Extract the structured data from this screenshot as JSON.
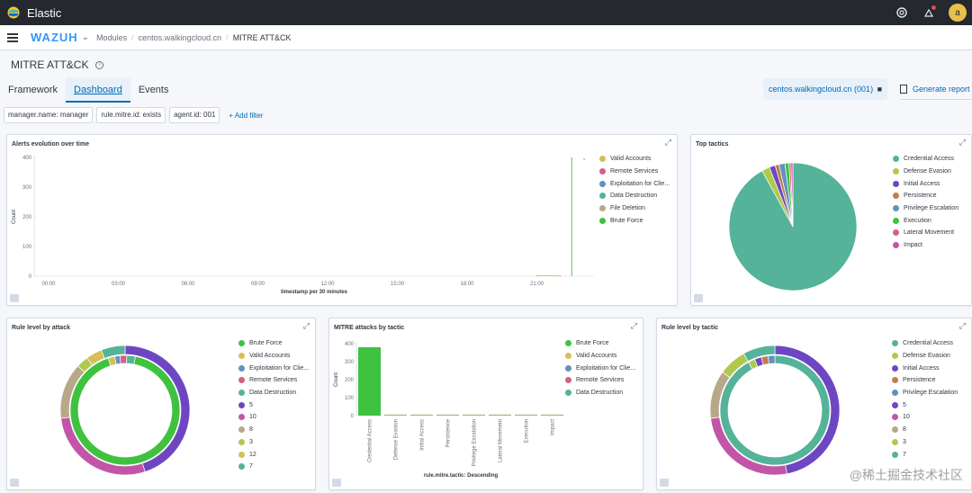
{
  "topbar": {
    "app_title": "Elastic",
    "avatar_letter": "a"
  },
  "navbar": {
    "brand": "WAZUH",
    "breadcrumbs": [
      "Modules",
      "centos.walkingcloud.cn",
      "MITRE ATT&CK"
    ]
  },
  "page": {
    "title": "MITRE ATT&CK"
  },
  "tabs": [
    "Framework",
    "Dashboard",
    "Events"
  ],
  "agent_pill": "centos.walkingcloud.cn (001)",
  "report_button": "Generate report",
  "filters": [
    "manager.name: manager",
    "rule.mitre.id: exists",
    "agent.id: 001"
  ],
  "add_filter": "+ Add filter",
  "panels": {
    "alerts": {
      "title": "Alerts evolution over time",
      "legend": [
        {
          "name": "Valid Accounts",
          "color": "#d6bf57"
        },
        {
          "name": "Remote Services",
          "color": "#d36086"
        },
        {
          "name": "Exploitation for Clie...",
          "color": "#6092c0"
        },
        {
          "name": "Data Destruction",
          "color": "#54b399"
        },
        {
          "name": "File Deletion",
          "color": "#b9a888"
        },
        {
          "name": "Brute Force",
          "color": "#3fc23f"
        }
      ]
    },
    "top_tactics": {
      "title": "Top tactics",
      "legend": [
        {
          "name": "Credential Access",
          "color": "#54b399"
        },
        {
          "name": "Defense Evasion",
          "color": "#b0c94d"
        },
        {
          "name": "Initial Access",
          "color": "#6e46c2"
        },
        {
          "name": "Persistence",
          "color": "#c47c4e"
        },
        {
          "name": "Privilege Escalation",
          "color": "#6092c0"
        },
        {
          "name": "Execution",
          "color": "#3fc23f"
        },
        {
          "name": "Lateral Movement",
          "color": "#d36086"
        },
        {
          "name": "Impact",
          "color": "#c255a8"
        }
      ]
    },
    "rule_attack": {
      "title": "Rule level by attack",
      "legend": [
        {
          "name": "Brute Force",
          "color": "#3fc23f"
        },
        {
          "name": "Valid Accounts",
          "color": "#d6bf57"
        },
        {
          "name": "Exploitation for Clie...",
          "color": "#6092c0"
        },
        {
          "name": "Remote Services",
          "color": "#d36086"
        },
        {
          "name": "Data Destruction",
          "color": "#54b399"
        },
        {
          "name": "5",
          "color": "#6e46c2"
        },
        {
          "name": "10",
          "color": "#c255a8"
        },
        {
          "name": "8",
          "color": "#b9a888"
        },
        {
          "name": "3",
          "color": "#b0c94d"
        },
        {
          "name": "12",
          "color": "#d6bf57"
        },
        {
          "name": "7",
          "color": "#54b399"
        }
      ]
    },
    "mitre_tactic": {
      "title": "MITRE attacks by tactic",
      "legend": [
        {
          "name": "Brute Force",
          "color": "#3fc23f"
        },
        {
          "name": "Valid Accounts",
          "color": "#d6bf57"
        },
        {
          "name": "Exploitation for Clie...",
          "color": "#6092c0"
        },
        {
          "name": "Remote Services",
          "color": "#d36086"
        },
        {
          "name": "Data Destruction",
          "color": "#54b399"
        }
      ]
    },
    "rule_tactic": {
      "title": "Rule level by tactic",
      "legend": [
        {
          "name": "Credential Access",
          "color": "#54b399"
        },
        {
          "name": "Defense Evasion",
          "color": "#b0c94d"
        },
        {
          "name": "Initial Access",
          "color": "#6e46c2"
        },
        {
          "name": "Persistence",
          "color": "#c47c4e"
        },
        {
          "name": "Privilege Escalation",
          "color": "#6092c0"
        },
        {
          "name": "5",
          "color": "#6e46c2"
        },
        {
          "name": "10",
          "color": "#c255a8"
        },
        {
          "name": "8",
          "color": "#b9a888"
        },
        {
          "name": "3",
          "color": "#b0c94d"
        },
        {
          "name": "7",
          "color": "#54b399"
        }
      ]
    }
  },
  "watermark": "@稀土掘金技术社区",
  "chart_data": [
    {
      "type": "line",
      "title": "Alerts evolution over time",
      "xlabel": "timestamp per 30 minutes",
      "ylabel": "Count",
      "x_ticks": [
        "00:00",
        "03:00",
        "06:00",
        "09:00",
        "12:00",
        "15:00",
        "18:00",
        "21:00"
      ],
      "y_ticks": [
        0,
        100,
        200,
        300,
        400
      ],
      "ylim": [
        0,
        400
      ],
      "series": [
        {
          "name": "Valid Accounts",
          "points": [
            [
              "21:00",
              2
            ],
            [
              "22:00",
              1
            ]
          ]
        },
        {
          "name": "Brute Force",
          "points": [
            [
              "22:30",
              400
            ]
          ]
        }
      ]
    },
    {
      "type": "pie",
      "title": "Top tactics",
      "categories": [
        "Credential Access",
        "Defense Evasion",
        "Initial Access",
        "Persistence",
        "Privilege Escalation",
        "Execution",
        "Lateral Movement",
        "Impact"
      ],
      "values": [
        92,
        2,
        1.5,
        1,
        1.5,
        1,
        0.5,
        0.5
      ]
    },
    {
      "type": "pie",
      "title": "Rule level by attack",
      "inner": {
        "categories": [
          "Brute Force",
          "Valid Accounts",
          "Exploitation for Clie...",
          "Remote Services",
          "Data Destruction"
        ],
        "values": [
          92,
          2,
          1.5,
          2,
          2.5
        ]
      },
      "outer": {
        "categories": [
          "5",
          "10",
          "8",
          "3",
          "12",
          "7"
        ],
        "values": [
          45,
          28,
          14,
          3,
          4,
          6
        ]
      }
    },
    {
      "type": "bar",
      "title": "MITRE attacks by tactic",
      "xlabel": "rule.mitre.tactic: Descending",
      "ylabel": "Count",
      "categories": [
        "Credential Access",
        "Defense Evasion",
        "Initial Access",
        "Persistence",
        "Privilege Escalation",
        "Lateral Movement",
        "Execution",
        "Impact"
      ],
      "values": [
        380,
        6,
        5,
        4,
        5,
        3,
        1,
        1
      ],
      "y_ticks": [
        0,
        100,
        200,
        300,
        400
      ],
      "ylim": [
        0,
        400
      ]
    },
    {
      "type": "pie",
      "title": "Rule level by tactic",
      "inner": {
        "categories": [
          "Credential Access",
          "Defense Evasion",
          "Initial Access",
          "Persistence",
          "Privilege Escalation"
        ],
        "values": [
          92,
          2,
          2,
          2,
          2
        ]
      },
      "outer": {
        "categories": [
          "5",
          "10",
          "8",
          "3",
          "7"
        ],
        "values": [
          47,
          26,
          12,
          7,
          8
        ]
      }
    }
  ]
}
